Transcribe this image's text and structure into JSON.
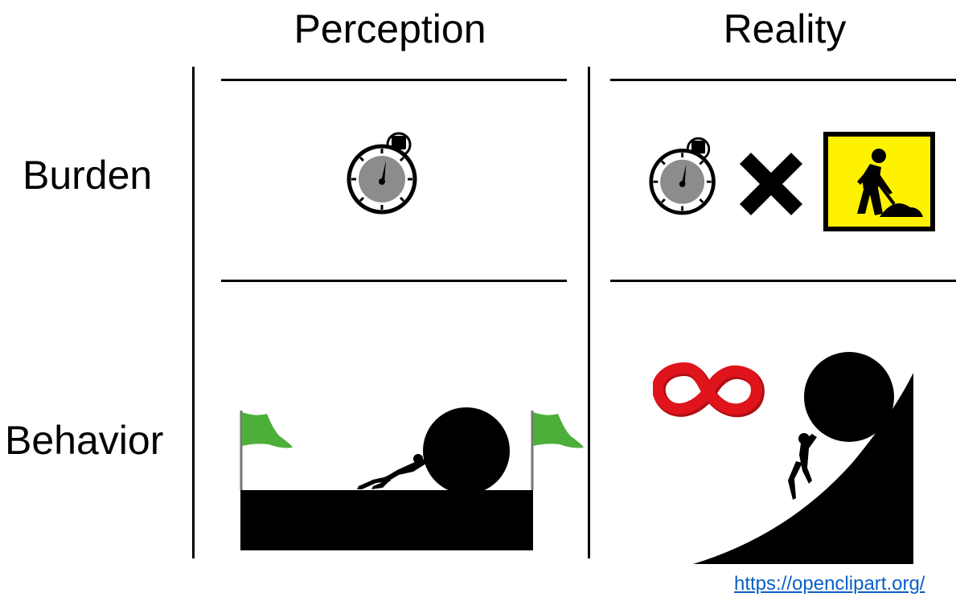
{
  "columns": {
    "perception": "Perception",
    "reality": "Reality"
  },
  "rows": {
    "burden": "Burden",
    "behavior": "Behavior"
  },
  "source_link": "https://openclipart.org/",
  "colors": {
    "line": "#000000",
    "stopwatch_face": "#8c8c8c",
    "warning_sign": "#fff200",
    "flag": "#4caf3a",
    "infinity": "#e0141b",
    "link": "#0b5fc7"
  },
  "icons": {
    "perception_burden": "stopwatch-icon",
    "reality_burden": [
      "stopwatch-icon",
      "multiply-icon",
      "roadwork-sign-icon"
    ],
    "perception_behavior": [
      "flag-icon",
      "person-pushing-boulder-icon",
      "flat-ground-icon",
      "flag-icon"
    ],
    "reality_behavior": [
      "infinity-icon",
      "person-pushing-boulder-uphill-icon"
    ]
  }
}
